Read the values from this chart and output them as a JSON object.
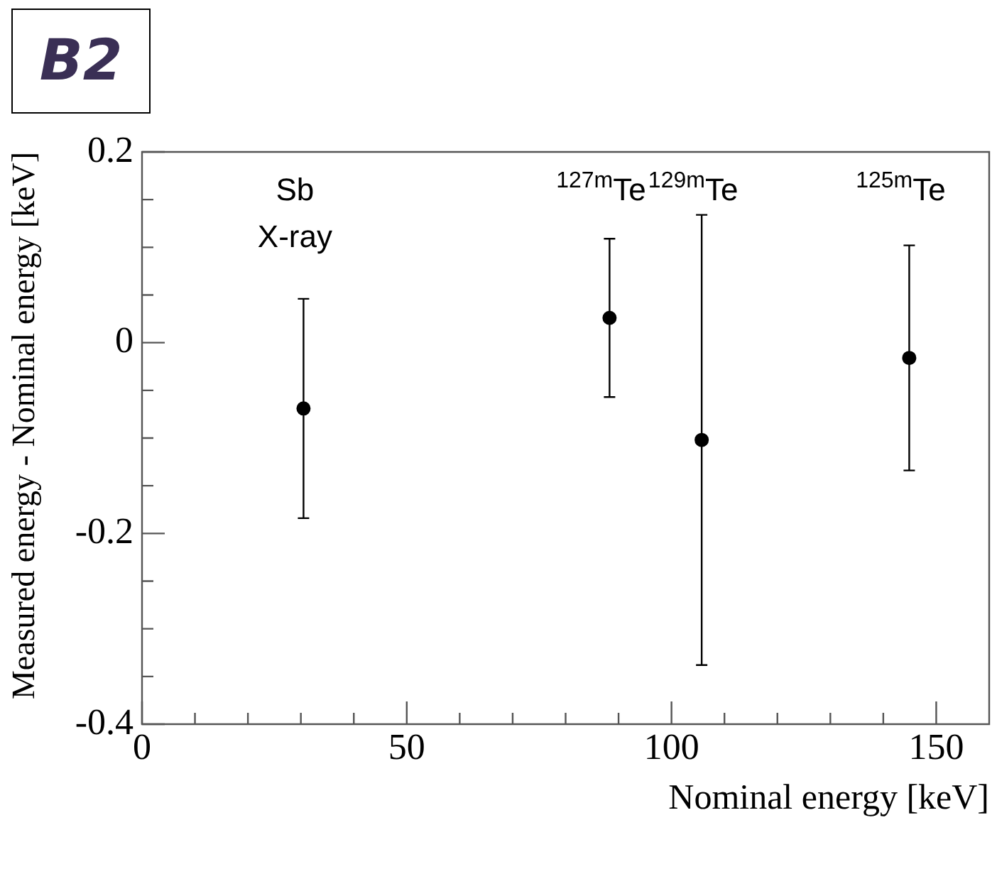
{
  "chart_data": {
    "type": "scatter",
    "title": "B2",
    "xlabel": "Nominal energy [keV]",
    "ylabel": "Measured energy - Nominal energy [keV]",
    "x": [
      30.5,
      88.3,
      105.7,
      144.9
    ],
    "values": [
      -0.069,
      0.026,
      -0.102,
      -0.016
    ],
    "errors": [
      0.115,
      0.083,
      0.236,
      0.118
    ],
    "color": "#000000",
    "marker": "circle",
    "xlim": [
      0,
      160
    ],
    "xticks": [
      0,
      {
        "value": 10,
        "label": null
      },
      {
        "value": 20,
        "label": null
      },
      {
        "value": 30,
        "label": null
      },
      {
        "value": 40,
        "label": null
      },
      50,
      {
        "value": 60,
        "label": null
      },
      {
        "value": 70,
        "label": null
      },
      {
        "value": 80,
        "label": null
      },
      {
        "value": 90,
        "label": null
      },
      100,
      {
        "value": 110,
        "label": null
      },
      {
        "value": 120,
        "label": null
      },
      {
        "value": 130,
        "label": null
      },
      {
        "value": 140,
        "label": null
      },
      150
    ],
    "ylim": [
      -0.4,
      0.2
    ],
    "yticks": [
      -0.4,
      {
        "value": -0.35,
        "label": null
      },
      {
        "value": -0.3,
        "label": null
      },
      {
        "value": -0.25,
        "label": null
      },
      -0.2,
      {
        "value": -0.15,
        "label": null
      },
      {
        "value": -0.1,
        "label": null
      },
      {
        "value": -0.05,
        "label": null
      },
      0,
      {
        "value": 0.05,
        "label": null
      },
      {
        "value": 0.1,
        "label": null
      },
      {
        "value": 0.15,
        "label": null
      },
      0.2
    ],
    "grid": false,
    "legend": false,
    "annotations": [
      "Sb\nX-ray",
      "$^{127m}$Te",
      "$^{129m}$Te",
      "$^{125m}$Te"
    ]
  }
}
